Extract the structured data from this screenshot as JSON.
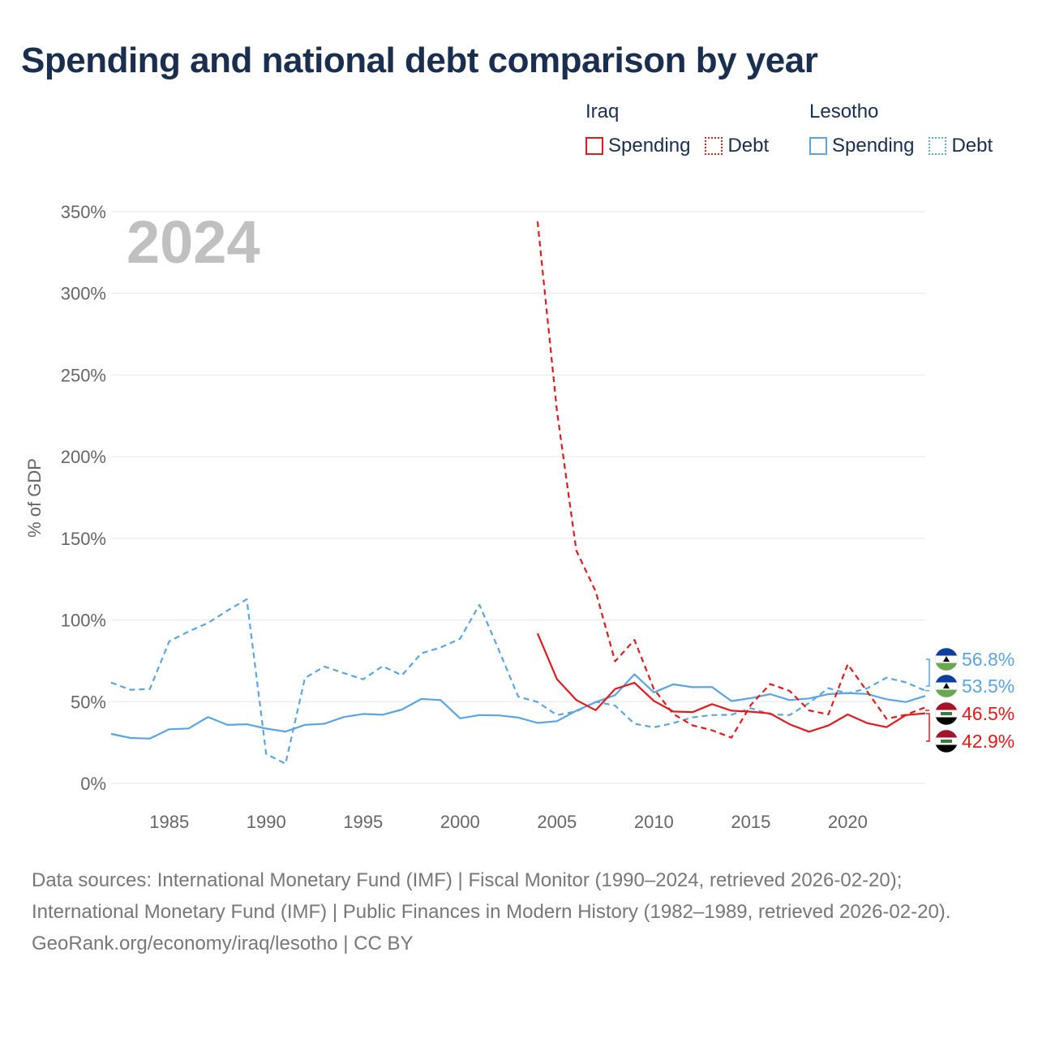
{
  "title": "Spending and national debt comparison by year",
  "legend": {
    "groups": [
      {
        "country": "Iraq",
        "spending_label": "Spending",
        "debt_label": "Debt"
      },
      {
        "country": "Lesotho",
        "spending_label": "Spending",
        "debt_label": "Debt"
      }
    ]
  },
  "footer": {
    "sources": "Data sources: International Monetary Fund (IMF) | Fiscal Monitor (1990–2024, retrieved 2026-02-20); International Monetary Fund (IMF) | Public Finances in Modern History (1982–1989, retrieved 2026-02-20).",
    "credit": "GeoRank.org/economy/iraq/lesotho | CC BY"
  },
  "colors": {
    "iraq": "#e31a1c",
    "lesotho": "#5aa5e2",
    "grid": "#e6e6e6",
    "axis_text": "#666666",
    "watermark": "#c0c0c0"
  },
  "chart_data": {
    "type": "line",
    "year_watermark": "2024",
    "ylabel": "% of GDP",
    "xlabel": "",
    "xlim": [
      1982,
      2024
    ],
    "ylim": [
      0,
      350
    ],
    "y_ticks": [
      0,
      50,
      100,
      150,
      200,
      250,
      300,
      350
    ],
    "y_tick_labels": [
      "0%",
      "50%",
      "100%",
      "150%",
      "200%",
      "250%",
      "300%",
      "350%"
    ],
    "x_ticks": [
      1985,
      1990,
      1995,
      2000,
      2005,
      2010,
      2015,
      2020
    ],
    "x_tick_labels": [
      "1985",
      "1990",
      "1995",
      "2000",
      "2005",
      "2010",
      "2015",
      "2020"
    ],
    "series": [
      {
        "name": "Lesotho Spending",
        "country": "lesotho",
        "style": "solid",
        "x": [
          1982,
          1983,
          1984,
          1985,
          1986,
          1987,
          1988,
          1989,
          1990,
          1991,
          1992,
          1993,
          1994,
          1995,
          1996,
          1997,
          1998,
          1999,
          2000,
          2001,
          2002,
          2003,
          2004,
          2005,
          2006,
          2007,
          2008,
          2009,
          2010,
          2011,
          2012,
          2013,
          2014,
          2015,
          2016,
          2017,
          2018,
          2019,
          2020,
          2021,
          2022,
          2023,
          2024
        ],
        "values": [
          30.3,
          27.8,
          27.4,
          33.1,
          33.6,
          40.6,
          35.8,
          36.2,
          33.5,
          31.7,
          35.8,
          36.5,
          40.6,
          42.5,
          42.0,
          45.2,
          51.7,
          51.0,
          39.8,
          41.8,
          41.6,
          40.3,
          37.0,
          38.1,
          44.5,
          49.7,
          54.0,
          66.8,
          55.7,
          60.6,
          58.9,
          59.0,
          50.4,
          52.2,
          54.6,
          51.0,
          52.0,
          54.6,
          55.3,
          54.7,
          51.5,
          49.8,
          53.5
        ]
      },
      {
        "name": "Lesotho Debt",
        "country": "lesotho",
        "style": "dashed",
        "x": [
          1982,
          1983,
          1984,
          1985,
          1986,
          1987,
          1988,
          1989,
          1990,
          1991,
          1992,
          1993,
          1994,
          1995,
          1996,
          1997,
          1998,
          1999,
          2000,
          2001,
          2002,
          2003,
          2004,
          2005,
          2006,
          2007,
          2008,
          2009,
          2010,
          2011,
          2012,
          2013,
          2014,
          2015,
          2016,
          2017,
          2018,
          2019,
          2020,
          2021,
          2022,
          2023,
          2024
        ],
        "values": [
          61.7,
          57.3,
          57.8,
          87.0,
          93.0,
          98.2,
          105.8,
          112.7,
          18.0,
          12.0,
          64.5,
          71.5,
          67.5,
          63.7,
          71.8,
          66.2,
          79.6,
          83.2,
          88.5,
          109.3,
          81.7,
          53.1,
          49.8,
          41.8,
          44.1,
          50.0,
          47.6,
          36.5,
          34.3,
          36.9,
          40.4,
          41.8,
          42.0,
          46.0,
          42.3,
          41.8,
          49.2,
          58.3,
          55.0,
          58.2,
          64.7,
          61.8,
          56.8
        ]
      },
      {
        "name": "Iraq Spending",
        "country": "iraq",
        "style": "solid",
        "x": [
          2004,
          2005,
          2006,
          2007,
          2008,
          2009,
          2010,
          2011,
          2012,
          2013,
          2014,
          2015,
          2016,
          2017,
          2018,
          2019,
          2020,
          2021,
          2022,
          2023,
          2024
        ],
        "values": [
          91.8,
          63.8,
          51.0,
          44.8,
          57.8,
          61.6,
          50.5,
          44.0,
          43.6,
          48.5,
          44.5,
          43.9,
          42.8,
          36.2,
          31.6,
          35.4,
          42.2,
          36.9,
          34.4,
          41.8,
          42.9
        ]
      },
      {
        "name": "Iraq Debt",
        "country": "iraq",
        "style": "dashed",
        "x": [
          2004,
          2005,
          2006,
          2007,
          2008,
          2009,
          2010,
          2011,
          2012,
          2013,
          2014,
          2015,
          2016,
          2017,
          2018,
          2019,
          2020,
          2021,
          2022,
          2023,
          2024
        ],
        "values": [
          344.0,
          228.0,
          142.5,
          117.5,
          74.7,
          87.8,
          57.8,
          42.5,
          35.5,
          32.5,
          28.0,
          48.0,
          60.8,
          56.6,
          44.7,
          42.2,
          72.9,
          56.3,
          39.5,
          42.0,
          46.5
        ]
      }
    ],
    "end_labels": [
      {
        "text": "56.8%",
        "country": "lesotho",
        "value": 56.8
      },
      {
        "text": "53.5%",
        "country": "lesotho",
        "value": 53.5
      },
      {
        "text": "46.5%",
        "country": "iraq",
        "value": 46.5
      },
      {
        "text": "42.9%",
        "country": "iraq",
        "value": 42.9
      }
    ]
  }
}
